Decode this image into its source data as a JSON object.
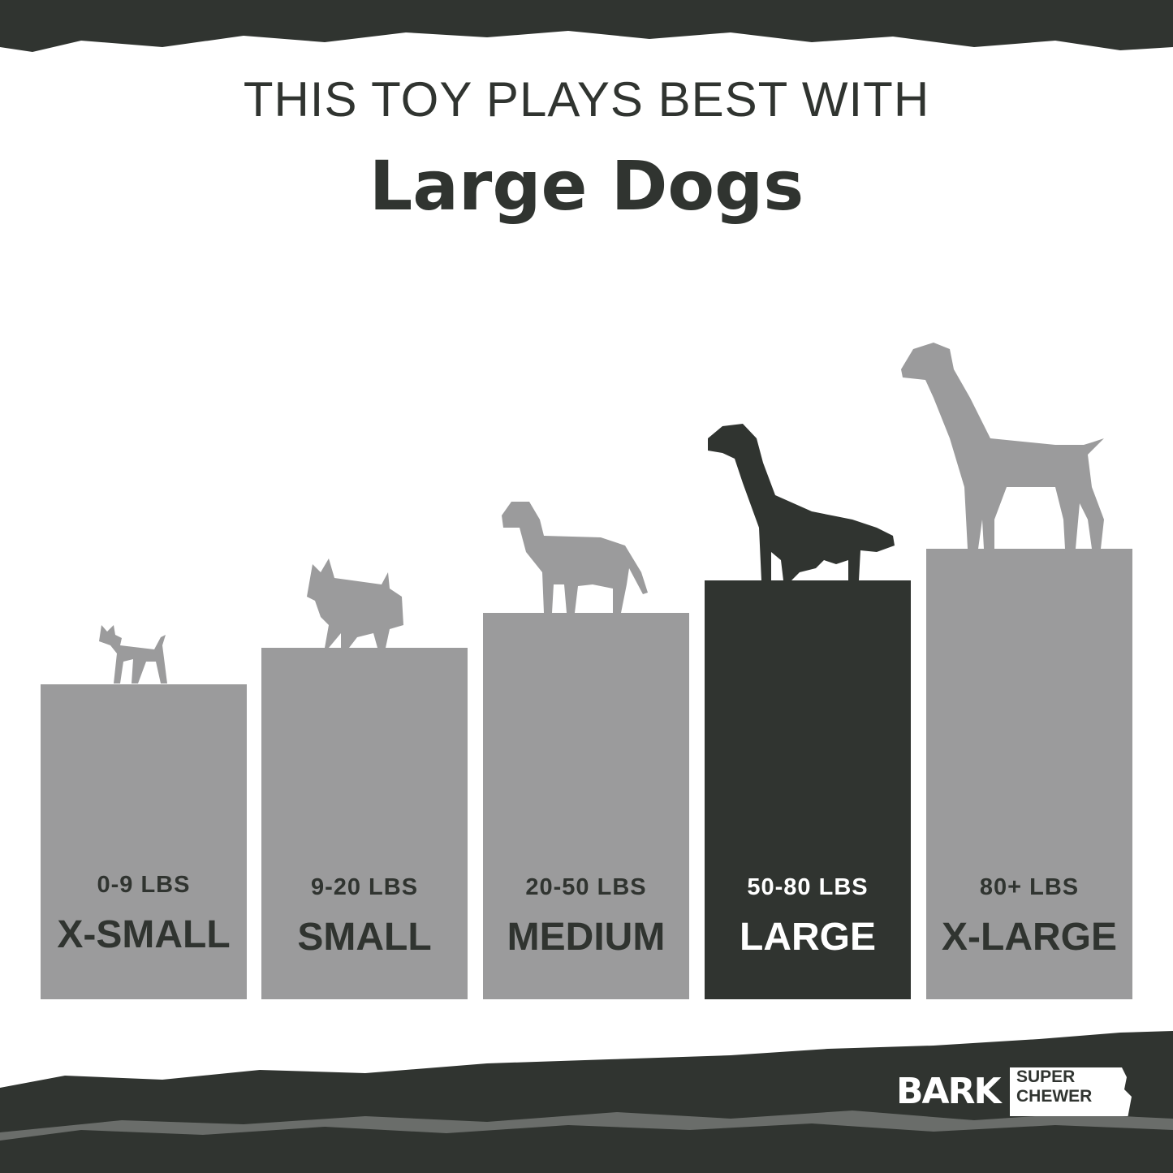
{
  "header": {
    "line1": "THIS TOY PLAYS BEST WITH",
    "line2": "Large Dogs"
  },
  "colors": {
    "dark": "#303430",
    "gray": "#9b9b9c",
    "background": "#ffffff"
  },
  "sizes": [
    {
      "weight": "0-9 LBS",
      "size": "X-SMALL",
      "icon": "chihuahua-silhouette-icon",
      "active": false
    },
    {
      "weight": "9-20 LBS",
      "size": "SMALL",
      "icon": "scottie-silhouette-icon",
      "active": false
    },
    {
      "weight": "20-50 LBS",
      "size": "MEDIUM",
      "icon": "labrador-silhouette-icon",
      "active": false
    },
    {
      "weight": "50-80 LBS",
      "size": "LARGE",
      "icon": "retriever-silhouette-icon",
      "active": true
    },
    {
      "weight": "80+ LBS",
      "size": "X-LARGE",
      "icon": "great-dane-silhouette-icon",
      "active": false
    }
  ],
  "logo": {
    "brand": "BARK",
    "sub1": "SUPER",
    "sub2": "CHEWER"
  }
}
